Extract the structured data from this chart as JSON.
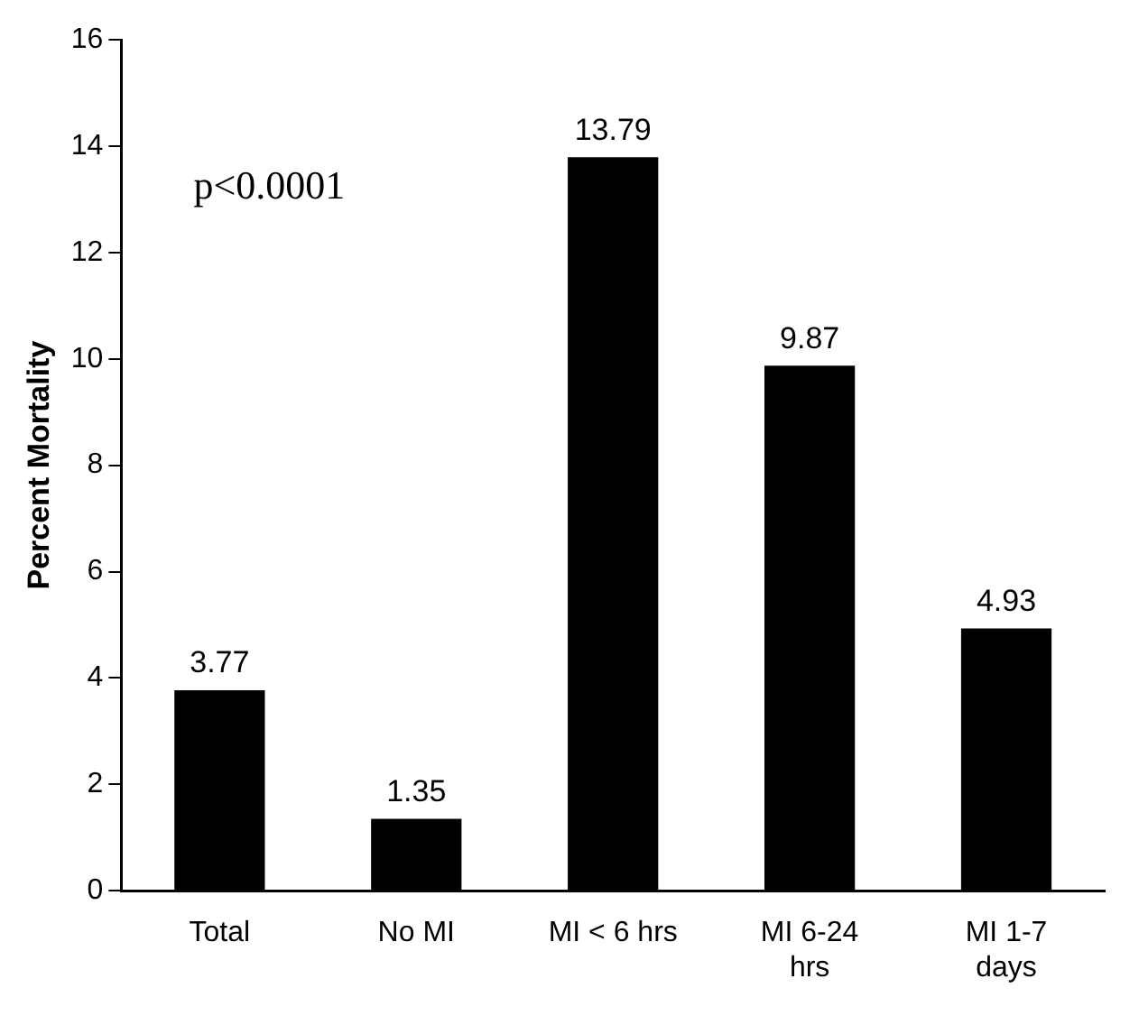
{
  "chart_data": {
    "type": "bar",
    "ylabel": "Percent Mortality",
    "categories": [
      "Total",
      "No MI",
      "MI < 6 hrs",
      "MI 6-24 hrs",
      "MI 1-7 days"
    ],
    "values": [
      3.77,
      1.35,
      13.79,
      9.87,
      4.93
    ],
    "color": "#000000",
    "ylim": [
      0,
      16
    ],
    "yticks": [
      0,
      2,
      4,
      6,
      8,
      10,
      12,
      14,
      16
    ],
    "grid": false,
    "legend": false,
    "data_labels": true,
    "annotations": [
      "p<0.0001"
    ]
  }
}
